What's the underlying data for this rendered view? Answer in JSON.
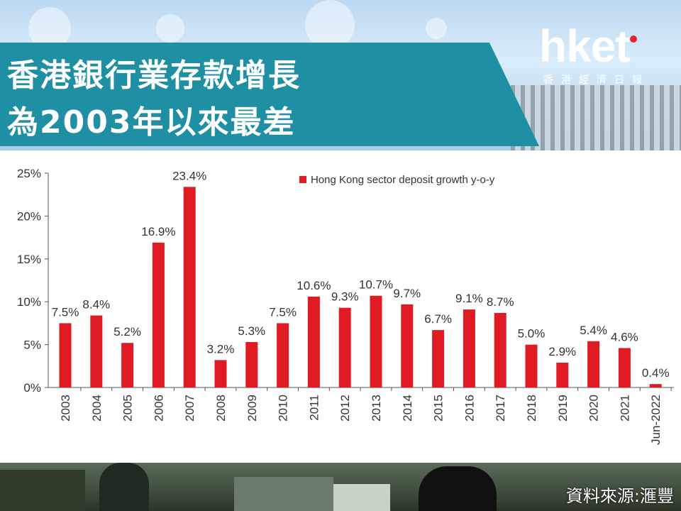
{
  "title": {
    "line1": "香港銀行業存款增長",
    "line2": "為2003年以來最差"
  },
  "logo": {
    "text": "hket",
    "subtitle": "香港經濟日報"
  },
  "source": "資料來源:滙豐",
  "colors": {
    "banner": "#1f8fa3",
    "bar": "#e11b23",
    "text": "#333333"
  },
  "chart_data": {
    "type": "bar",
    "title": "",
    "xlabel": "",
    "ylabel": "",
    "ylim": [
      0,
      25
    ],
    "yticks": [
      "0%",
      "5%",
      "10%",
      "15%",
      "20%",
      "25%"
    ],
    "ytick_values": [
      0,
      5,
      10,
      15,
      20,
      25
    ],
    "grid": false,
    "legend_position": "top-right",
    "categories": [
      "2003",
      "2004",
      "2005",
      "2006",
      "2007",
      "2008",
      "2009",
      "2010",
      "2011",
      "2012",
      "2013",
      "2014",
      "2015",
      "2016",
      "2017",
      "2018",
      "2019",
      "2020",
      "2021",
      "Jun-2022"
    ],
    "series": [
      {
        "name": "Hong Kong sector deposit growth y-o-y",
        "values": [
          7.5,
          8.4,
          5.2,
          16.9,
          23.4,
          3.2,
          5.3,
          7.5,
          10.6,
          9.3,
          10.7,
          9.7,
          6.7,
          9.1,
          8.7,
          5.0,
          2.9,
          5.4,
          4.6,
          0.4
        ],
        "labels": [
          "7.5%",
          "8.4%",
          "5.2%",
          "16.9%",
          "23.4%",
          "3.2%",
          "5.3%",
          "7.5%",
          "10.6%",
          "9.3%",
          "10.7%",
          "9.7%",
          "6.7%",
          "9.1%",
          "8.7%",
          "5.0%",
          "2.9%",
          "5.4%",
          "4.6%",
          "0.4%"
        ]
      }
    ]
  }
}
